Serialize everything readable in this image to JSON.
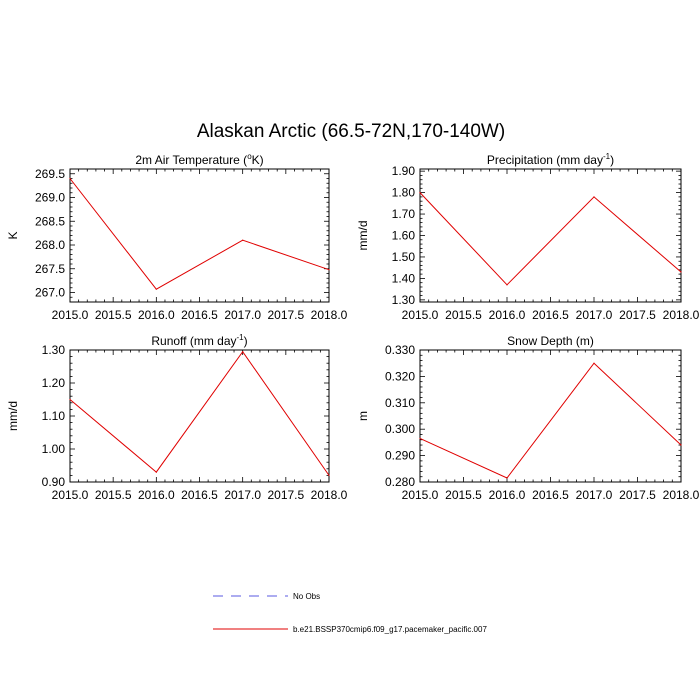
{
  "title": "Alaskan Arctic (66.5-72N,170-140W)",
  "legend": [
    {
      "label": "No Obs",
      "color": "#5a5ae0",
      "style": "dashed"
    },
    {
      "label": "b.e21.BSSP370cmip6.f09_g17.pacemaker_pacific.007",
      "color": "#e00000",
      "style": "solid"
    }
  ],
  "chart_data": [
    {
      "type": "line",
      "title": "2m Air Temperature (°K)",
      "title_main": "2m Air Temperature (",
      "title_sup": "o",
      "title_end": "K)",
      "xlabel": "",
      "ylabel": "K",
      "xlim": [
        2015.0,
        2018.0
      ],
      "ylim": [
        266.8,
        269.6
      ],
      "xticks": [
        "2015.0",
        "2015.5",
        "2016.0",
        "2016.5",
        "2017.0",
        "2017.5",
        "2018.0"
      ],
      "yticks": [
        "269.5",
        "269.0",
        "268.5",
        "268.0",
        "267.5",
        "267.0"
      ],
      "series": [
        {
          "name": "b.e21.BSSP370cmip6.f09_g17.pacemaker_pacific.007",
          "color": "#e00000",
          "x": [
            2015,
            2016,
            2017,
            2018
          ],
          "values": [
            269.4,
            267.07,
            268.1,
            267.48
          ]
        }
      ]
    },
    {
      "type": "line",
      "title": "Precipitation (mm day-1)",
      "title_main": "Precipitation (mm day",
      "title_sup": "-1",
      "title_end": ")",
      "xlabel": "",
      "ylabel": "mm/d",
      "xlim": [
        2015.0,
        2018.0
      ],
      "ylim": [
        1.29,
        1.91
      ],
      "xticks": [
        "2015.0",
        "2015.5",
        "2016.0",
        "2016.5",
        "2017.0",
        "2017.5",
        "2018.0"
      ],
      "yticks": [
        "1.90",
        "1.80",
        "1.70",
        "1.60",
        "1.50",
        "1.40",
        "1.30"
      ],
      "series": [
        {
          "name": "b.e21.BSSP370cmip6.f09_g17.pacemaker_pacific.007",
          "color": "#e00000",
          "x": [
            2015,
            2016,
            2017,
            2018
          ],
          "values": [
            1.8,
            1.37,
            1.78,
            1.43
          ]
        }
      ]
    },
    {
      "type": "line",
      "title": "Runoff (mm day-1)",
      "title_main": "Runoff (mm day",
      "title_sup": "-1",
      "title_end": ")",
      "xlabel": "",
      "ylabel": "mm/d",
      "xlim": [
        2015.0,
        2018.0
      ],
      "ylim": [
        0.9,
        1.3
      ],
      "xticks": [
        "2015.0",
        "2015.5",
        "2016.0",
        "2016.5",
        "2017.0",
        "2017.5",
        "2018.0"
      ],
      "yticks": [
        "1.30",
        "1.20",
        "1.10",
        "1.00",
        "0.90"
      ],
      "series": [
        {
          "name": "b.e21.BSSP370cmip6.f09_g17.pacemaker_pacific.007",
          "color": "#e00000",
          "x": [
            2015,
            2016,
            2017,
            2018
          ],
          "values": [
            1.15,
            0.93,
            1.295,
            0.92
          ]
        }
      ]
    },
    {
      "type": "line",
      "title": "Snow Depth (m)",
      "title_main": "Snow Depth (m)",
      "title_sup": "",
      "title_end": "",
      "xlabel": "",
      "ylabel": "m",
      "xlim": [
        2015.0,
        2018.0
      ],
      "ylim": [
        0.28,
        0.33
      ],
      "xticks": [
        "2015.0",
        "2015.5",
        "2016.0",
        "2016.5",
        "2017.0",
        "2017.5",
        "2018.0"
      ],
      "yticks": [
        "0.330",
        "0.320",
        "0.310",
        "0.300",
        "0.290",
        "0.280"
      ],
      "series": [
        {
          "name": "b.e21.BSSP370cmip6.f09_g17.pacemaker_pacific.007",
          "color": "#e00000",
          "x": [
            2015,
            2016,
            2017,
            2018
          ],
          "values": [
            0.2965,
            0.2815,
            0.325,
            0.294
          ]
        }
      ]
    }
  ]
}
